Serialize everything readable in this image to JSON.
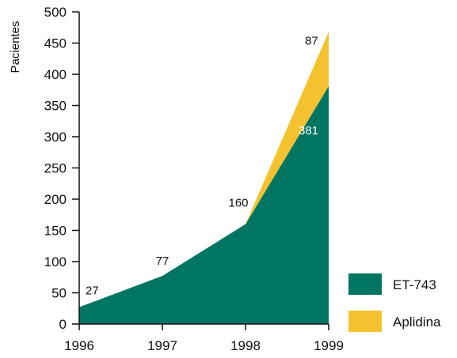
{
  "chart_data": {
    "type": "area",
    "stacked": true,
    "ylabel": "Pacientes",
    "xlabel": "",
    "x": [
      "1996",
      "1997",
      "1998",
      "1999"
    ],
    "ylim": [
      0,
      500
    ],
    "yticks": [
      0,
      50,
      100,
      150,
      200,
      250,
      300,
      350,
      400,
      450,
      500
    ],
    "grid": false,
    "legend_position": "bottom-right",
    "series": [
      {
        "name": "ET-743",
        "color": "#007561",
        "values": [
          27,
          77,
          160,
          381
        ],
        "labels": [
          "27",
          "77",
          "160",
          "381"
        ]
      },
      {
        "name": "Aplidina",
        "color": "#f5c22f",
        "values": [
          0,
          0,
          0,
          87
        ],
        "labels": [
          "",
          "",
          "",
          "87"
        ]
      }
    ]
  }
}
